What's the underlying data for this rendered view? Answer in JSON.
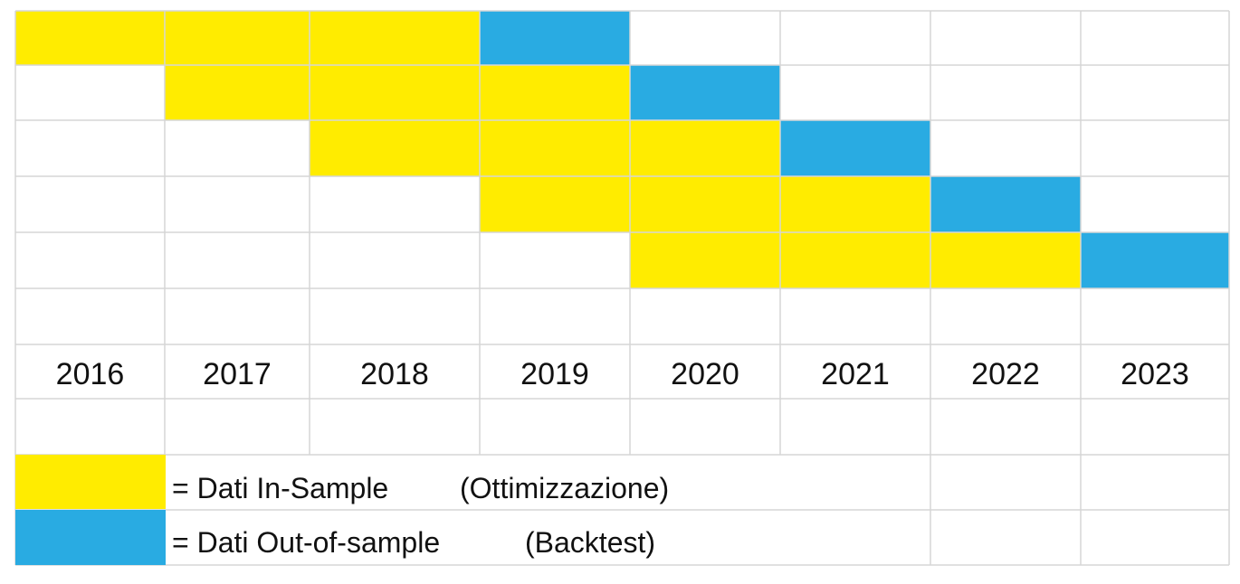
{
  "years": [
    "2016",
    "2017",
    "2018",
    "2019",
    "2020",
    "2021",
    "2022",
    "2023"
  ],
  "colors": {
    "in_sample": "#ffec00",
    "out_of_sample": "#29abe2",
    "grid": "#d6d6d6",
    "background": "#ffffff"
  },
  "windows": [
    {
      "in_sample": [
        "2016",
        "2017",
        "2018"
      ],
      "out_of_sample": "2019"
    },
    {
      "in_sample": [
        "2017",
        "2018",
        "2019"
      ],
      "out_of_sample": "2020"
    },
    {
      "in_sample": [
        "2018",
        "2019",
        "2020"
      ],
      "out_of_sample": "2021"
    },
    {
      "in_sample": [
        "2019",
        "2020",
        "2021"
      ],
      "out_of_sample": "2022"
    },
    {
      "in_sample": [
        "2020",
        "2021",
        "2022"
      ],
      "out_of_sample": "2023"
    }
  ],
  "legend": {
    "in_sample": {
      "prefix": "= Dati In-Sample",
      "note": "(Ottimizzazione)"
    },
    "out_of_sample": {
      "prefix": "= Dati Out-of-sample",
      "note": "(Backtest)"
    }
  }
}
